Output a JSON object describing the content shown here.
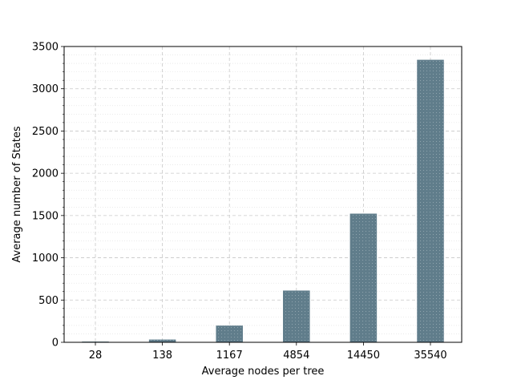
{
  "chart_data": {
    "type": "bar",
    "categories": [
      "28",
      "138",
      "1167",
      "4854",
      "14450",
      "35540"
    ],
    "values": [
      6,
      30,
      195,
      610,
      1520,
      3340
    ],
    "title": "",
    "xlabel": "Average nodes per tree",
    "ylabel": "Average number of States",
    "ylim": [
      0,
      3500
    ],
    "yticks": [
      0,
      500,
      1000,
      1500,
      2000,
      2500,
      3000,
      3500
    ],
    "grid": true,
    "bar_color": "#607d8b"
  }
}
